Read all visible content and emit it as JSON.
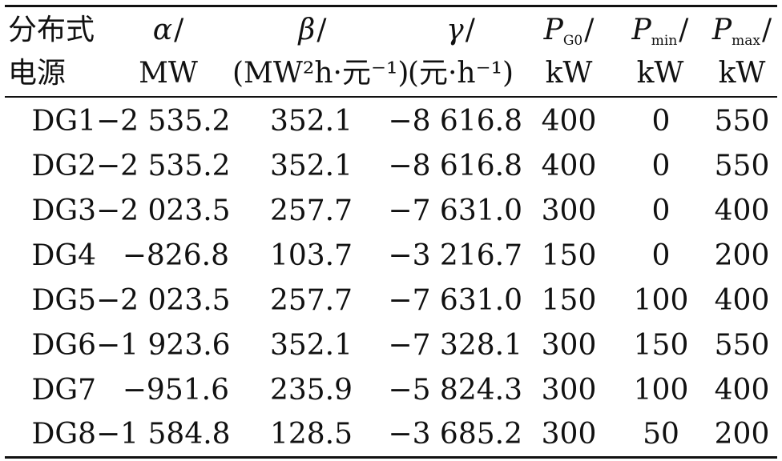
{
  "header": {
    "row1": {
      "source": "分布式",
      "alpha": "α",
      "beta": "β",
      "gamma": "γ",
      "pg0_main": "P",
      "pg0_sub": "G0",
      "pmin_main": "P",
      "pmin_sub": "min",
      "pmax_main": "P",
      "pmax_sub": "max",
      "slash": "/"
    },
    "row2": {
      "source": "电源",
      "alpha_unit": "MW",
      "beta_unit": "(MW²h·元⁻¹)",
      "gamma_unit": "(元·h⁻¹)",
      "pg0_unit": "kW",
      "pmin_unit": "kW",
      "pmax_unit": "kW"
    }
  },
  "rows": [
    {
      "name": "DG1",
      "alpha": "−2 535.2",
      "beta": "352.1",
      "gamma": "−8 616.8",
      "pg0": "400",
      "pmin": "0",
      "pmax": "550"
    },
    {
      "name": "DG2",
      "alpha": "−2 535.2",
      "beta": "352.1",
      "gamma": "−8 616.8",
      "pg0": "400",
      "pmin": "0",
      "pmax": "550"
    },
    {
      "name": "DG3",
      "alpha": "−2 023.5",
      "beta": "257.7",
      "gamma": "−7 631.0",
      "pg0": "300",
      "pmin": "0",
      "pmax": "400"
    },
    {
      "name": "DG4",
      "alpha": "−826.8",
      "beta": "103.7",
      "gamma": "−3 216.7",
      "pg0": "150",
      "pmin": "0",
      "pmax": "200"
    },
    {
      "name": "DG5",
      "alpha": "−2 023.5",
      "beta": "257.7",
      "gamma": "−7 631.0",
      "pg0": "150",
      "pmin": "100",
      "pmax": "400"
    },
    {
      "name": "DG6",
      "alpha": "−1 923.6",
      "beta": "352.1",
      "gamma": "−7 328.1",
      "pg0": "300",
      "pmin": "150",
      "pmax": "550"
    },
    {
      "name": "DG7",
      "alpha": "−951.6",
      "beta": "235.9",
      "gamma": "−5 824.3",
      "pg0": "300",
      "pmin": "100",
      "pmax": "400"
    },
    {
      "name": "DG8",
      "alpha": "−1 584.8",
      "beta": "128.5",
      "gamma": "−3 685.2",
      "pg0": "300",
      "pmin": "50",
      "pmax": "200"
    }
  ]
}
